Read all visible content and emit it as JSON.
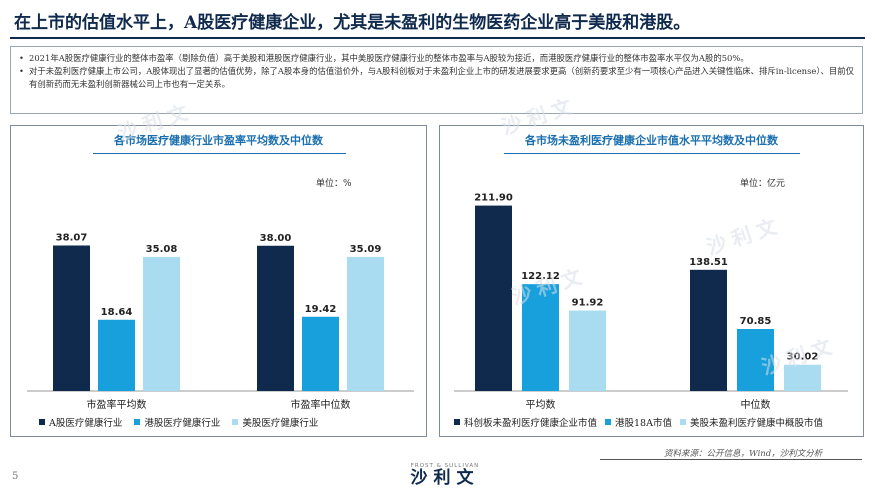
{
  "title": "在上市的估值水平上，A股医疗健康企业，尤其是未盈利的生物医药企业高于美股和港股。",
  "bullets": [
    "2021年A股医疗健康行业的整体市盈率（剔除负值）高于美股和港股医疗健康行业，其中美股医疗健康行业的整体市盈率与A股较为接近，而港股医疗健康行业的整体市盈率水平仅为A股的50%。",
    "对于未盈利医疗健康上市公司，A股体现出了显著的估值优势，除了A股本身的估值溢价外，与A股科创板对于未盈利企业上市的研发进展要求更高（创新药要求至少有一项核心产品进入关键性临床、排斥in-license）、目前仅有创新药而无未盈利创新器械公司上市也有一定关系。"
  ],
  "watermark": "沙利文",
  "footer": {
    "source": "资料来源：公开信息，Wind，沙利文分析",
    "page": "5",
    "logo_en": "FROST & SULLIVAN",
    "logo_cn": "沙利文"
  },
  "chart_data": [
    {
      "type": "bar",
      "title": "各市场医疗健康行业市盈率平均数及中位数",
      "unit": "单位：%",
      "categories": [
        "市盈率平均数",
        "市盈率中位数"
      ],
      "series": [
        {
          "name": "A股医疗健康行业",
          "values": [
            38.07,
            38.0
          ],
          "labels": [
            "38.07",
            "38.00"
          ],
          "color": "#0f2a4d"
        },
        {
          "name": "港股医疗健康行业",
          "values": [
            18.64,
            19.42
          ],
          "labels": [
            "18.64",
            "19.42"
          ],
          "color": "#18a0dc"
        },
        {
          "name": "美股医疗健康行业",
          "values": [
            35.08,
            35.09
          ],
          "labels": [
            "35.08",
            "35.09"
          ],
          "color": "#a9dcf0"
        }
      ],
      "ylim": [
        0,
        45
      ]
    },
    {
      "type": "bar",
      "title": "各市场未盈利医疗健康企业市值水平平均数及中位数",
      "unit": "单位：亿元",
      "categories": [
        "平均数",
        "中位数"
      ],
      "series": [
        {
          "name": "科创板未盈利医疗健康企业市值",
          "values": [
            211.9,
            138.51
          ],
          "labels": [
            "211.90",
            "138.51"
          ],
          "color": "#0f2a4d"
        },
        {
          "name": "港股18A市值",
          "values": [
            122.12,
            70.85
          ],
          "labels": [
            "122.12",
            "70.85"
          ],
          "color": "#18a0dc"
        },
        {
          "name": "美股未盈利医疗健康中概股市值",
          "values": [
            91.92,
            30.02
          ],
          "labels": [
            "91.92",
            "30.02"
          ],
          "color": "#a9dcf0"
        }
      ],
      "ylim": [
        0,
        240
      ]
    }
  ]
}
